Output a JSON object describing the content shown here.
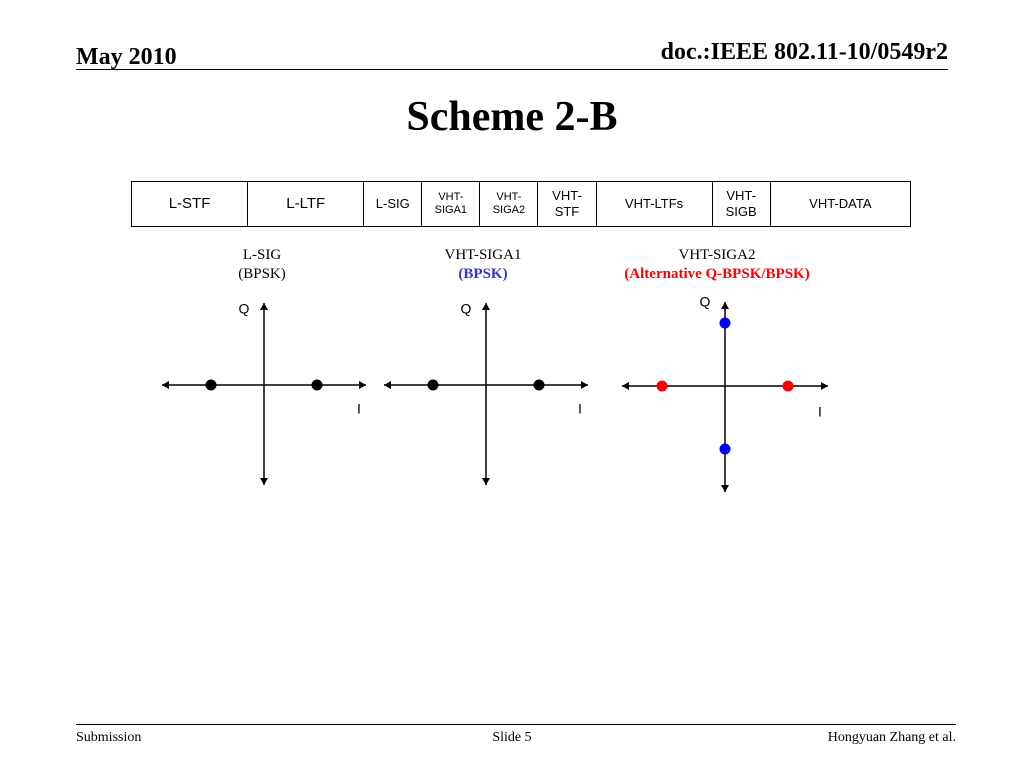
{
  "header": {
    "date": "May 2010",
    "doc_id": "doc.:IEEE 802.11-10/0549r2"
  },
  "title": "Scheme 2-B",
  "frame_fields": [
    {
      "label": "L-STF",
      "w": 1.0,
      "fs": 15
    },
    {
      "label": "L-LTF",
      "w": 1.0,
      "fs": 15
    },
    {
      "label": "L-SIG",
      "w": 0.5,
      "fs": 13
    },
    {
      "label": "VHT-\nSIGA1",
      "w": 0.5,
      "fs": 11
    },
    {
      "label": "VHT-\nSIGA2",
      "w": 0.5,
      "fs": 11
    },
    {
      "label": "VHT-\nSTF",
      "w": 0.5,
      "fs": 13
    },
    {
      "label": "VHT-LTFs",
      "w": 1.0,
      "fs": 13
    },
    {
      "label": "VHT-\nSIGB",
      "w": 0.5,
      "fs": 13
    },
    {
      "label": "VHT-DATA",
      "w": 1.2,
      "fs": 13
    }
  ],
  "constellations": [
    {
      "name": "L-SIG",
      "modulation": "(BPSK)",
      "modulation_color": "#000000",
      "q_label": "Q",
      "i_label": "I",
      "points": [
        {
          "i": -1,
          "q": 0,
          "color": "#000000"
        },
        {
          "i": 1,
          "q": 0,
          "color": "#000000"
        }
      ]
    },
    {
      "name": "VHT-SIGA1",
      "modulation": "(BPSK)",
      "modulation_color": "#3333cc",
      "q_label": "Q",
      "i_label": "I",
      "points": [
        {
          "i": -1,
          "q": 0,
          "color": "#000000"
        },
        {
          "i": 1,
          "q": 0,
          "color": "#000000"
        }
      ]
    },
    {
      "name": "VHT-SIGA2",
      "modulation": "(Alternative Q-BPSK/BPSK)",
      "modulation_color": "#ff0000",
      "q_label": "Q",
      "i_label": "I",
      "points": [
        {
          "i": -1,
          "q": 0,
          "color": "#ff0000"
        },
        {
          "i": 1,
          "q": 0,
          "color": "#ff0000"
        },
        {
          "i": 0,
          "q": 1,
          "color": "#0000ff"
        },
        {
          "i": 0,
          "q": -1,
          "color": "#0000ff"
        }
      ]
    }
  ],
  "footer": {
    "left": "Submission",
    "center": "Slide 5",
    "right": "Hongyuan Zhang et al."
  }
}
